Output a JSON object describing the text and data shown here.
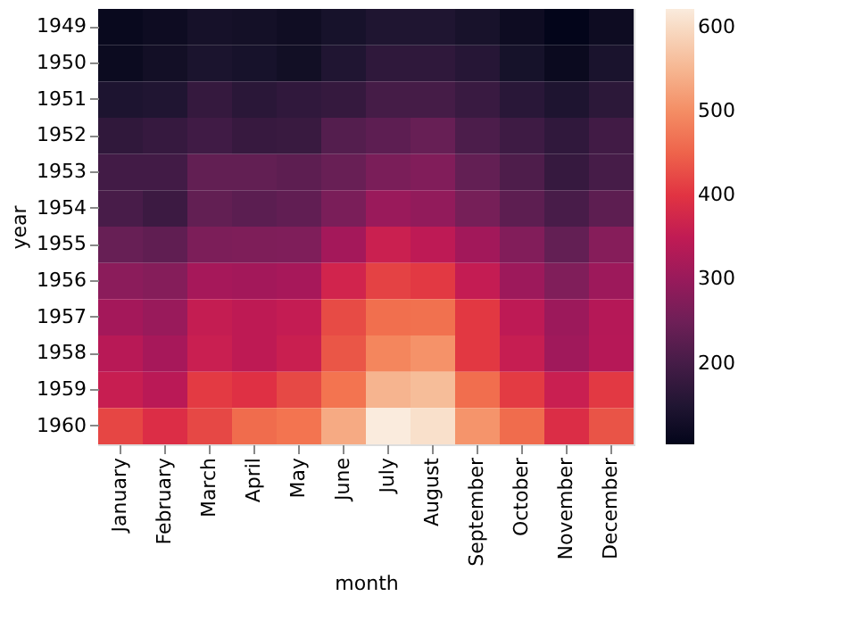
{
  "chart_data": {
    "type": "heatmap",
    "xlabel": "month",
    "ylabel": "year",
    "categories": [
      "January",
      "February",
      "March",
      "April",
      "May",
      "June",
      "July",
      "August",
      "September",
      "October",
      "November",
      "December"
    ],
    "y_categories": [
      "1949",
      "1950",
      "1951",
      "1952",
      "1953",
      "1954",
      "1955",
      "1956",
      "1957",
      "1958",
      "1959",
      "1960"
    ],
    "cells": [
      [
        112,
        118,
        132,
        129,
        121,
        135,
        148,
        148,
        136,
        119,
        104,
        118
      ],
      [
        115,
        126,
        141,
        135,
        125,
        149,
        170,
        170,
        158,
        133,
        114,
        140
      ],
      [
        145,
        150,
        178,
        163,
        172,
        178,
        199,
        199,
        184,
        162,
        146,
        166
      ],
      [
        171,
        180,
        193,
        181,
        183,
        218,
        230,
        242,
        209,
        191,
        172,
        194
      ],
      [
        196,
        196,
        236,
        235,
        229,
        243,
        264,
        272,
        237,
        211,
        180,
        201
      ],
      [
        204,
        188,
        235,
        227,
        234,
        264,
        302,
        293,
        259,
        229,
        203,
        229
      ],
      [
        242,
        233,
        267,
        269,
        270,
        315,
        364,
        347,
        312,
        274,
        237,
        278
      ],
      [
        284,
        277,
        317,
        313,
        318,
        374,
        413,
        405,
        355,
        306,
        271,
        306
      ],
      [
        315,
        301,
        356,
        348,
        355,
        422,
        465,
        467,
        404,
        347,
        305,
        336
      ],
      [
        340,
        318,
        362,
        348,
        363,
        435,
        491,
        505,
        404,
        359,
        310,
        337
      ],
      [
        360,
        342,
        406,
        396,
        420,
        472,
        548,
        559,
        463,
        407,
        362,
        405
      ],
      [
        417,
        391,
        419,
        461,
        472,
        535,
        622,
        606,
        508,
        461,
        390,
        432
      ]
    ],
    "clim": [
      104,
      622
    ],
    "cticks": [
      200,
      300,
      400,
      500,
      600
    ]
  }
}
